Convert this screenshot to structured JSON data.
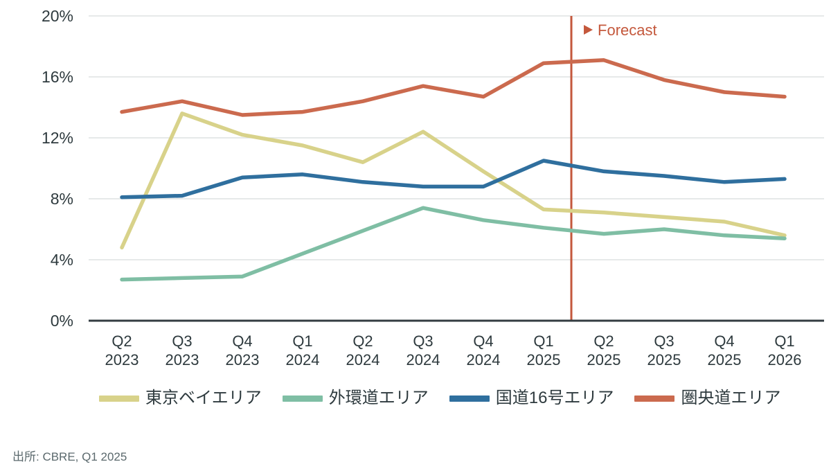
{
  "chart_data": {
    "type": "line",
    "title": "",
    "xlabel": "",
    "ylabel": "",
    "ylim": [
      0,
      20
    ],
    "yticks": [
      0,
      4,
      8,
      12,
      16,
      20
    ],
    "ytick_suffix": "%",
    "grid": "horizontal",
    "legend_position": "bottom",
    "categories": [
      "Q2 2023",
      "Q3 2023",
      "Q4 2023",
      "Q1 2024",
      "Q2 2024",
      "Q3 2024",
      "Q4 2024",
      "Q1 2025",
      "Q2 2025",
      "Q3 2025",
      "Q4 2025",
      "Q1 2026"
    ],
    "series": [
      {
        "id": "tokyo-bay-area",
        "name": "東京ベイエリア",
        "color": "#D8D28A",
        "values": [
          4.8,
          13.6,
          12.2,
          11.5,
          10.4,
          12.4,
          9.8,
          7.3,
          7.1,
          6.8,
          6.5,
          5.6
        ]
      },
      {
        "id": "gaikando-area",
        "name": "外環道エリア",
        "color": "#7FBEA4",
        "values": [
          2.7,
          2.8,
          2.9,
          4.4,
          5.9,
          7.4,
          6.6,
          6.1,
          5.7,
          6.0,
          5.6,
          5.4
        ]
      },
      {
        "id": "route16-area",
        "name": "国道16号エリア",
        "color": "#2F6F9E",
        "values": [
          8.1,
          8.2,
          9.4,
          9.6,
          9.1,
          8.8,
          8.8,
          10.5,
          9.8,
          9.5,
          9.1,
          9.3
        ]
      },
      {
        "id": "kenodo-area",
        "name": "圏央道エリア",
        "color": "#CB6A4E",
        "values": [
          13.7,
          14.4,
          13.5,
          13.7,
          14.4,
          15.4,
          14.7,
          16.9,
          17.1,
          15.8,
          15.0,
          14.7
        ]
      }
    ],
    "forecast": {
      "label": "Forecast",
      "marker": "▶",
      "after_category": "Q1 2025",
      "color": "#C4583C"
    },
    "source": "出所: CBRE, Q1 2025"
  }
}
